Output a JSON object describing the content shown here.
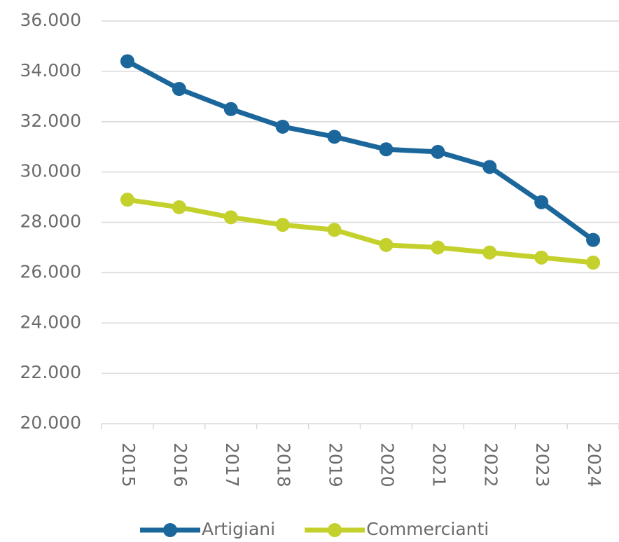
{
  "chart_data": {
    "type": "line",
    "categories": [
      "2015",
      "2016",
      "2017",
      "2018",
      "2019",
      "2020",
      "2021",
      "2022",
      "2023",
      "2024"
    ],
    "series": [
      {
        "name": "Artigiani",
        "color": "#1b679b",
        "values": [
          34400,
          33300,
          32500,
          31800,
          31400,
          30900,
          30800,
          30200,
          28800,
          27300
        ]
      },
      {
        "name": "Commercianti",
        "color": "#c4d12c",
        "values": [
          28900,
          28600,
          28200,
          27900,
          27700,
          27100,
          27000,
          26800,
          26600,
          26400
        ]
      }
    ],
    "ylim": [
      20000,
      36000
    ],
    "yticks": [
      {
        "value": 20000,
        "label": "20.000"
      },
      {
        "value": 22000,
        "label": "22.000"
      },
      {
        "value": 24000,
        "label": "24.000"
      },
      {
        "value": 26000,
        "label": "26.000"
      },
      {
        "value": 28000,
        "label": "28.000"
      },
      {
        "value": 30000,
        "label": "30.000"
      },
      {
        "value": 32000,
        "label": "32.000"
      },
      {
        "value": 34000,
        "label": "34.000"
      },
      {
        "value": 36000,
        "label": "36.000"
      }
    ],
    "grid": true,
    "legend": "bottom"
  }
}
